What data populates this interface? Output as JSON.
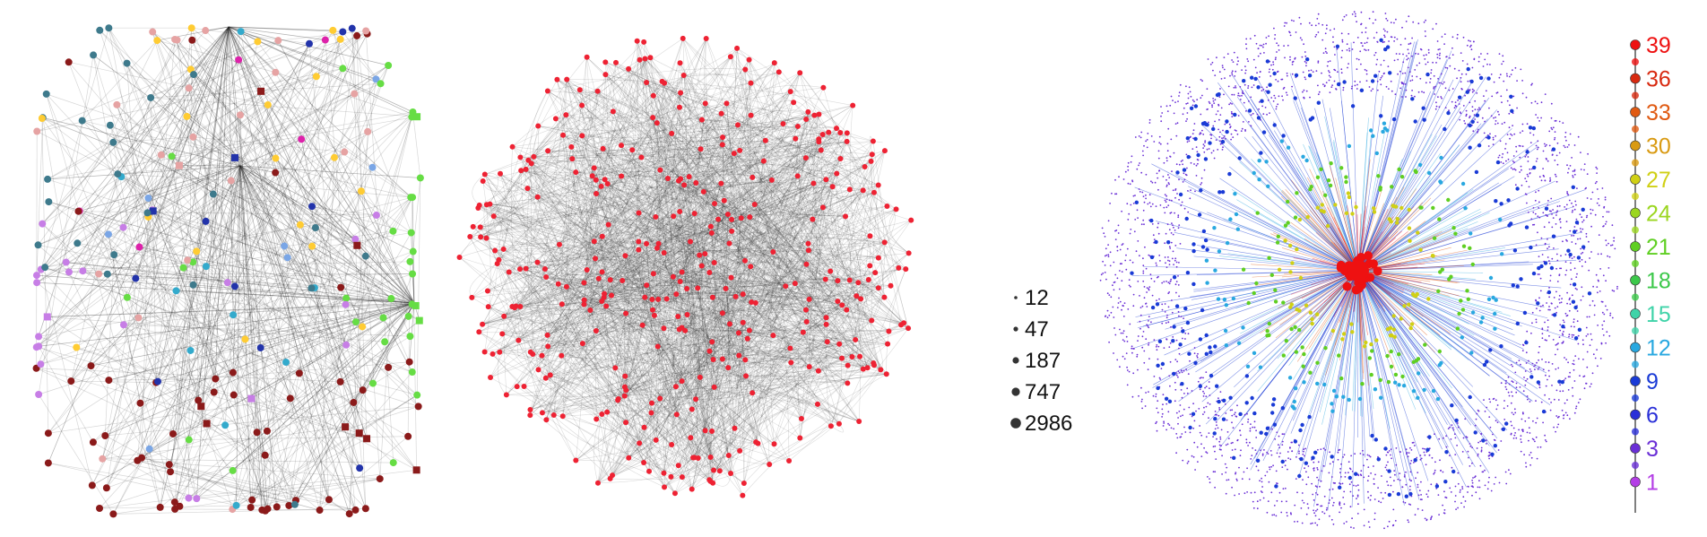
{
  "panels": [
    {
      "id": "network-left"
    },
    {
      "id": "network-middle"
    },
    {
      "id": "network-right"
    }
  ],
  "size_legend": {
    "items": [
      {
        "label": "12"
      },
      {
        "label": "47"
      },
      {
        "label": "187"
      },
      {
        "label": "747"
      },
      {
        "label": "2986"
      }
    ]
  },
  "color_legend": {
    "items": [
      {
        "label": "39",
        "color": "#ee1111"
      },
      {
        "label": "36",
        "color": "#d82a10"
      },
      {
        "label": "33",
        "color": "#e05a12"
      },
      {
        "label": "30",
        "color": "#d99a12"
      },
      {
        "label": "27",
        "color": "#d0d015"
      },
      {
        "label": "24",
        "color": "#9bd620"
      },
      {
        "label": "21",
        "color": "#5fcf22"
      },
      {
        "label": "18",
        "color": "#3cc84a"
      },
      {
        "label": "15",
        "color": "#3fd3a8"
      },
      {
        "label": "12",
        "color": "#29a8e0"
      },
      {
        "label": "9",
        "color": "#1a3bd6"
      },
      {
        "label": "6",
        "color": "#2a30d8"
      },
      {
        "label": "3",
        "color": "#6a2fd6"
      },
      {
        "label": "1",
        "color": "#b43ee6"
      }
    ]
  },
  "colors": {
    "edge": "#222222",
    "left_palette": [
      "#8b1a1a",
      "#3e7a8c",
      "#7aa6e6",
      "#c77ee6",
      "#e6a3a3",
      "#ffcc33",
      "#66dd44",
      "#33aacc",
      "#dd22aa",
      "#2233aa"
    ],
    "middle_node": "#ee2233",
    "right_palette": [
      "#6a2fd6",
      "#1a3bd6",
      "#29a8e0",
      "#5fcf22",
      "#d0d015",
      "#e05a12",
      "#ee1111"
    ]
  }
}
